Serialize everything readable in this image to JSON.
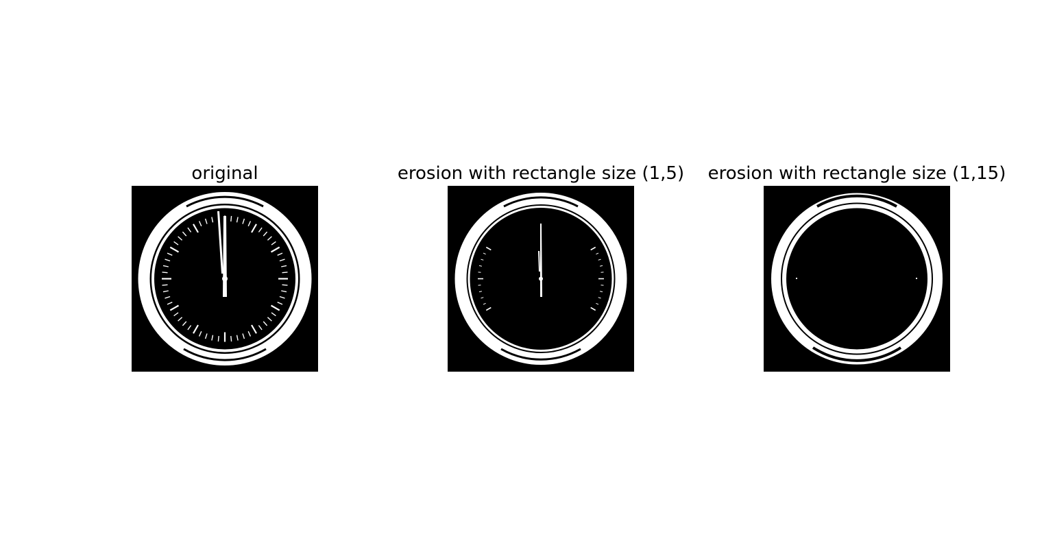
{
  "figure": {
    "background": "#ffffff",
    "panels": [
      {
        "title": "original",
        "image": "binary-clock-face"
      },
      {
        "title": "erosion with rectangle size (1,5)",
        "image": "binary-clock-face-eroded-1x5"
      },
      {
        "title": "erosion with rectangle size (1,15)",
        "image": "binary-clock-face-eroded-1x15"
      }
    ],
    "colors": {
      "foreground": "#ffffff",
      "image_background": "#000000",
      "title_text": "#000000"
    }
  }
}
